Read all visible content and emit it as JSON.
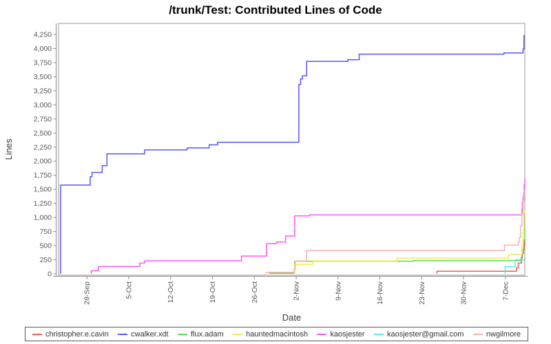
{
  "chart_data": {
    "type": "line",
    "title": "/trunk/Test: Contributed Lines of Code",
    "xlabel": "Date",
    "ylabel": "Lines",
    "x_unit": "days, 0 = 23-Sep (left edge of plot), 78 = ~10-Dec (right edge)",
    "xlim": [
      0,
      78
    ],
    "ylim": [
      0,
      4250
    ],
    "y_tick_step": 250,
    "grid": false,
    "legend_position": "bottom",
    "line_style": "step-after",
    "x_ticks": [
      {
        "day": 4.75,
        "label": "28-Sep"
      },
      {
        "day": 11.75,
        "label": "5-Oct"
      },
      {
        "day": 18.75,
        "label": "12-Oct"
      },
      {
        "day": 25.75,
        "label": "19-Oct"
      },
      {
        "day": 32.75,
        "label": "26-Oct"
      },
      {
        "day": 39.75,
        "label": "2-Nov"
      },
      {
        "day": 46.75,
        "label": "9-Nov"
      },
      {
        "day": 53.75,
        "label": "16-Nov"
      },
      {
        "day": 60.75,
        "label": "23-Nov"
      },
      {
        "day": 67.75,
        "label": "30-Nov"
      },
      {
        "day": 74.75,
        "label": "7-Dec"
      }
    ],
    "series": [
      {
        "name": "christopher.e.cavin",
        "color": "#FF5555",
        "points": [
          [
            63.3,
            0
          ],
          [
            63.3,
            45
          ],
          [
            76.6,
            105
          ],
          [
            76.9,
            190
          ],
          [
            77.4,
            290
          ],
          [
            77.6,
            360
          ],
          [
            77.75,
            435
          ],
          [
            77.9,
            525
          ],
          [
            78,
            620
          ]
        ]
      },
      {
        "name": "cwalker.xdt",
        "color": "#5555FF",
        "points": [
          [
            0.35,
            0
          ],
          [
            0.35,
            1575
          ],
          [
            5.3,
            1725
          ],
          [
            5.6,
            1800
          ],
          [
            7.3,
            1920
          ],
          [
            8.1,
            2130
          ],
          [
            14.4,
            2200
          ],
          [
            21.5,
            2235
          ],
          [
            25.2,
            2290
          ],
          [
            26.6,
            2335
          ],
          [
            40.2,
            3360
          ],
          [
            40.5,
            3460
          ],
          [
            40.8,
            3515
          ],
          [
            41.5,
            3770
          ],
          [
            48.4,
            3800
          ],
          [
            50.3,
            3900
          ],
          [
            74.5,
            3920
          ],
          [
            77.7,
            3990
          ],
          [
            77.85,
            4230
          ],
          [
            78,
            4230
          ]
        ]
      },
      {
        "name": "flux.adam",
        "color": "#55DD55",
        "points": [
          [
            35.3,
            0
          ],
          [
            35.3,
            8
          ],
          [
            39.5,
            225
          ],
          [
            59.5,
            235
          ],
          [
            77.5,
            400
          ],
          [
            77.8,
            600
          ],
          [
            78,
            800
          ]
        ]
      },
      {
        "name": "hauntedmacintosh",
        "color": "#EDED4A",
        "points": [
          [
            39.5,
            0
          ],
          [
            39.5,
            170
          ],
          [
            42.6,
            228
          ],
          [
            56.6,
            280
          ],
          [
            75.3,
            342
          ],
          [
            77.5,
            500
          ],
          [
            77.7,
            730
          ],
          [
            77.85,
            1075
          ],
          [
            78,
            1140
          ]
        ]
      },
      {
        "name": "kaosjester",
        "color": "#FF55FF",
        "points": [
          [
            5.5,
            0
          ],
          [
            5.5,
            55
          ],
          [
            6.7,
            130
          ],
          [
            13.6,
            190
          ],
          [
            14.4,
            230
          ],
          [
            30.6,
            315
          ],
          [
            34.8,
            535
          ],
          [
            36.5,
            565
          ],
          [
            38,
            670
          ],
          [
            39.5,
            1030
          ],
          [
            42,
            1045
          ],
          [
            77.5,
            1140
          ],
          [
            77.6,
            1280
          ],
          [
            77.7,
            1360
          ],
          [
            77.8,
            1440
          ],
          [
            77.9,
            1585
          ],
          [
            78,
            1690
          ]
        ]
      },
      {
        "name": "kaosjester@gmail.com",
        "color": "#55EEEE",
        "points": [
          [
            74.7,
            0
          ],
          [
            74.7,
            125
          ],
          [
            76.4,
            250
          ],
          [
            78,
            250
          ]
        ]
      },
      {
        "name": "nwgilmore",
        "color": "#FFAFAF",
        "points": [
          [
            34.8,
            0
          ],
          [
            34.8,
            28
          ],
          [
            39.4,
            80
          ],
          [
            39.6,
            230
          ],
          [
            41.5,
            415
          ],
          [
            74.6,
            510
          ],
          [
            76.9,
            565
          ],
          [
            77.1,
            650
          ],
          [
            77.3,
            850
          ],
          [
            77.5,
            1075
          ],
          [
            77.7,
            1300
          ],
          [
            77.9,
            1460
          ],
          [
            78,
            1500
          ]
        ]
      }
    ]
  }
}
